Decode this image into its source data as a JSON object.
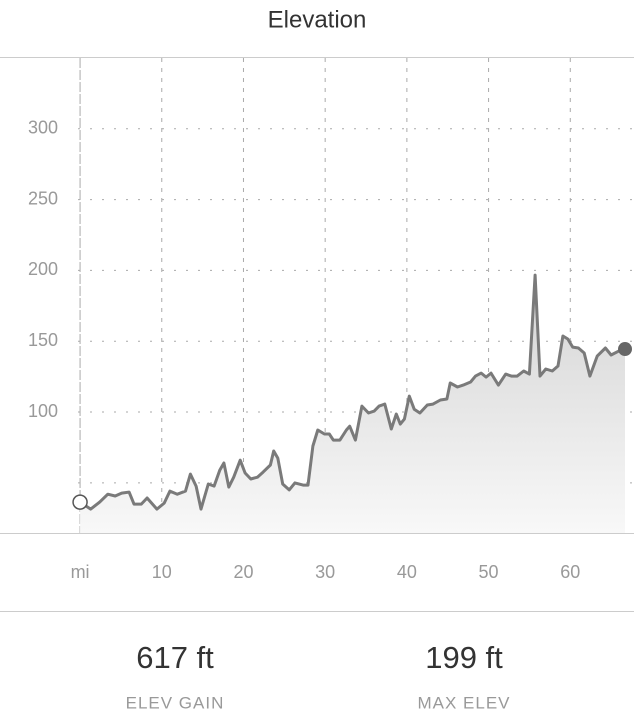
{
  "header": {
    "title": "Elevation"
  },
  "chart_data": {
    "type": "line",
    "x": [
      0,
      1.3,
      2.4,
      3.4,
      4.3,
      5.1,
      6,
      6.6,
      7.5,
      8.2,
      9.4,
      10.3,
      11,
      11.9,
      12.9,
      13.5,
      14.2,
      14.8,
      15.7,
      16.4,
      17.1,
      17.6,
      18.2,
      18.8,
      19.6,
      20.2,
      20.9,
      21.7,
      22.4,
      23.3,
      23.7,
      24.2,
      24.8,
      25.6,
      26.3,
      27.3,
      27.9,
      28.5,
      29.1,
      29.9,
      30.5,
      31,
      31.8,
      32.6,
      33,
      33.7,
      34.5,
      35.3,
      36,
      36.6,
      37.3,
      38.1,
      38.7,
      39.2,
      39.7,
      40.3,
      40.9,
      41.6,
      42.5,
      43.2,
      44.1,
      44.9,
      45.3,
      46.2,
      46.9,
      47.8,
      48.4,
      49.1,
      49.7,
      50.3,
      51.2,
      52.1,
      52.8,
      53.5,
      54.3,
      55,
      55.7,
      56.3,
      57,
      57.8,
      58.5,
      59.1,
      59.7,
      60.3,
      61,
      61.7,
      62.4,
      63.3,
      64.3,
      65,
      65.9,
      66.7
    ],
    "series": [
      {
        "name": "Elevation",
        "color": "#7a7a7a",
        "values": [
          36.4,
          31.5,
          36.4,
          42,
          40.7,
          42.8,
          43.5,
          35,
          35,
          39.3,
          31.5,
          35.7,
          44.2,
          42,
          44.2,
          56.2,
          47.7,
          31.5,
          49.2,
          47.7,
          59,
          64,
          47,
          54,
          66,
          57,
          52.7,
          54,
          57.6,
          62.6,
          72.5,
          67.5,
          49.2,
          45,
          50,
          48.4,
          48.4,
          76,
          87.3,
          84.5,
          84.5,
          80.2,
          80.2,
          87.3,
          90,
          80.2,
          104.2,
          99.3,
          100.7,
          104.2,
          105.6,
          88,
          98.6,
          91.5,
          95,
          111.3,
          102,
          99.3,
          105,
          105.6,
          108.5,
          109.2,
          120.5,
          117.7,
          119,
          121.2,
          125.4,
          127.5,
          124.7,
          127.5,
          119,
          126.8,
          125.4,
          125.4,
          129,
          126.8,
          196.7,
          125.4,
          130.4,
          129,
          132.5,
          153.7,
          151.6,
          145.9,
          145.2,
          141.7,
          125.4,
          139.5,
          145.2,
          140.3,
          143,
          144.5
        ]
      }
    ],
    "xlim": [
      -9.8,
      67.8
    ],
    "ylim": [
      14.6,
      350
    ],
    "xticks": [
      {
        "value": 0,
        "label": "mi"
      },
      10,
      20,
      30,
      40,
      50,
      60
    ],
    "yticks": [
      100,
      150,
      200,
      250,
      300
    ],
    "ygrid": [
      50,
      100,
      150,
      200,
      250,
      300
    ],
    "grid": true
  },
  "stats": [
    {
      "value": "617 ft",
      "label": "ELEV GAIN"
    },
    {
      "value": "199 ft",
      "label": "MAX ELEV"
    }
  ]
}
